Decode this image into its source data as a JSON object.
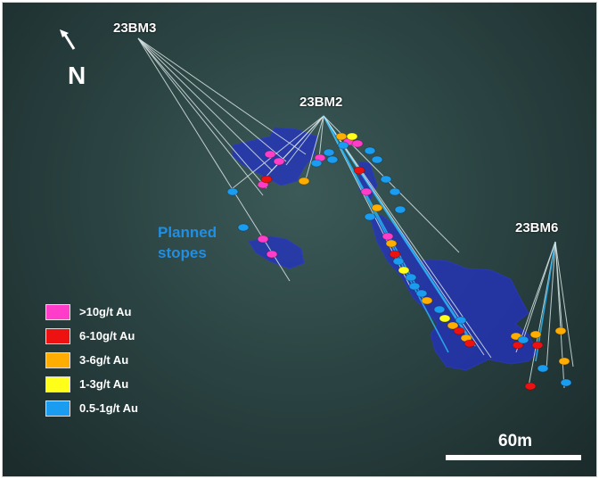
{
  "drillholes": [
    {
      "id": "23BM3",
      "label": "23BM3"
    },
    {
      "id": "23BM2",
      "label": "23BM2"
    },
    {
      "id": "23BM6",
      "label": "23BM6"
    }
  ],
  "north": {
    "label": "N",
    "icon": "north-arrow-icon"
  },
  "planned_stopes": {
    "line1": "Planned",
    "line2": "stopes",
    "color": "#1f8fe6"
  },
  "legend": {
    "items": [
      {
        "label": ">10g/t Au",
        "color": "#ff3dc8"
      },
      {
        "label": "6-10g/t Au",
        "color": "#ee1111"
      },
      {
        "label": "3-6g/t Au",
        "color": "#ffad00"
      },
      {
        "label": "1-3g/t Au",
        "color": "#ffff1a"
      },
      {
        "label": "0.5-1g/t Au",
        "color": "#1a9cf0"
      }
    ]
  },
  "scale": {
    "label": "60m"
  },
  "colors": {
    "stope": "#2230c8",
    "trace": "#d8e4e4",
    "trace_highlight": "#29b6f6"
  }
}
